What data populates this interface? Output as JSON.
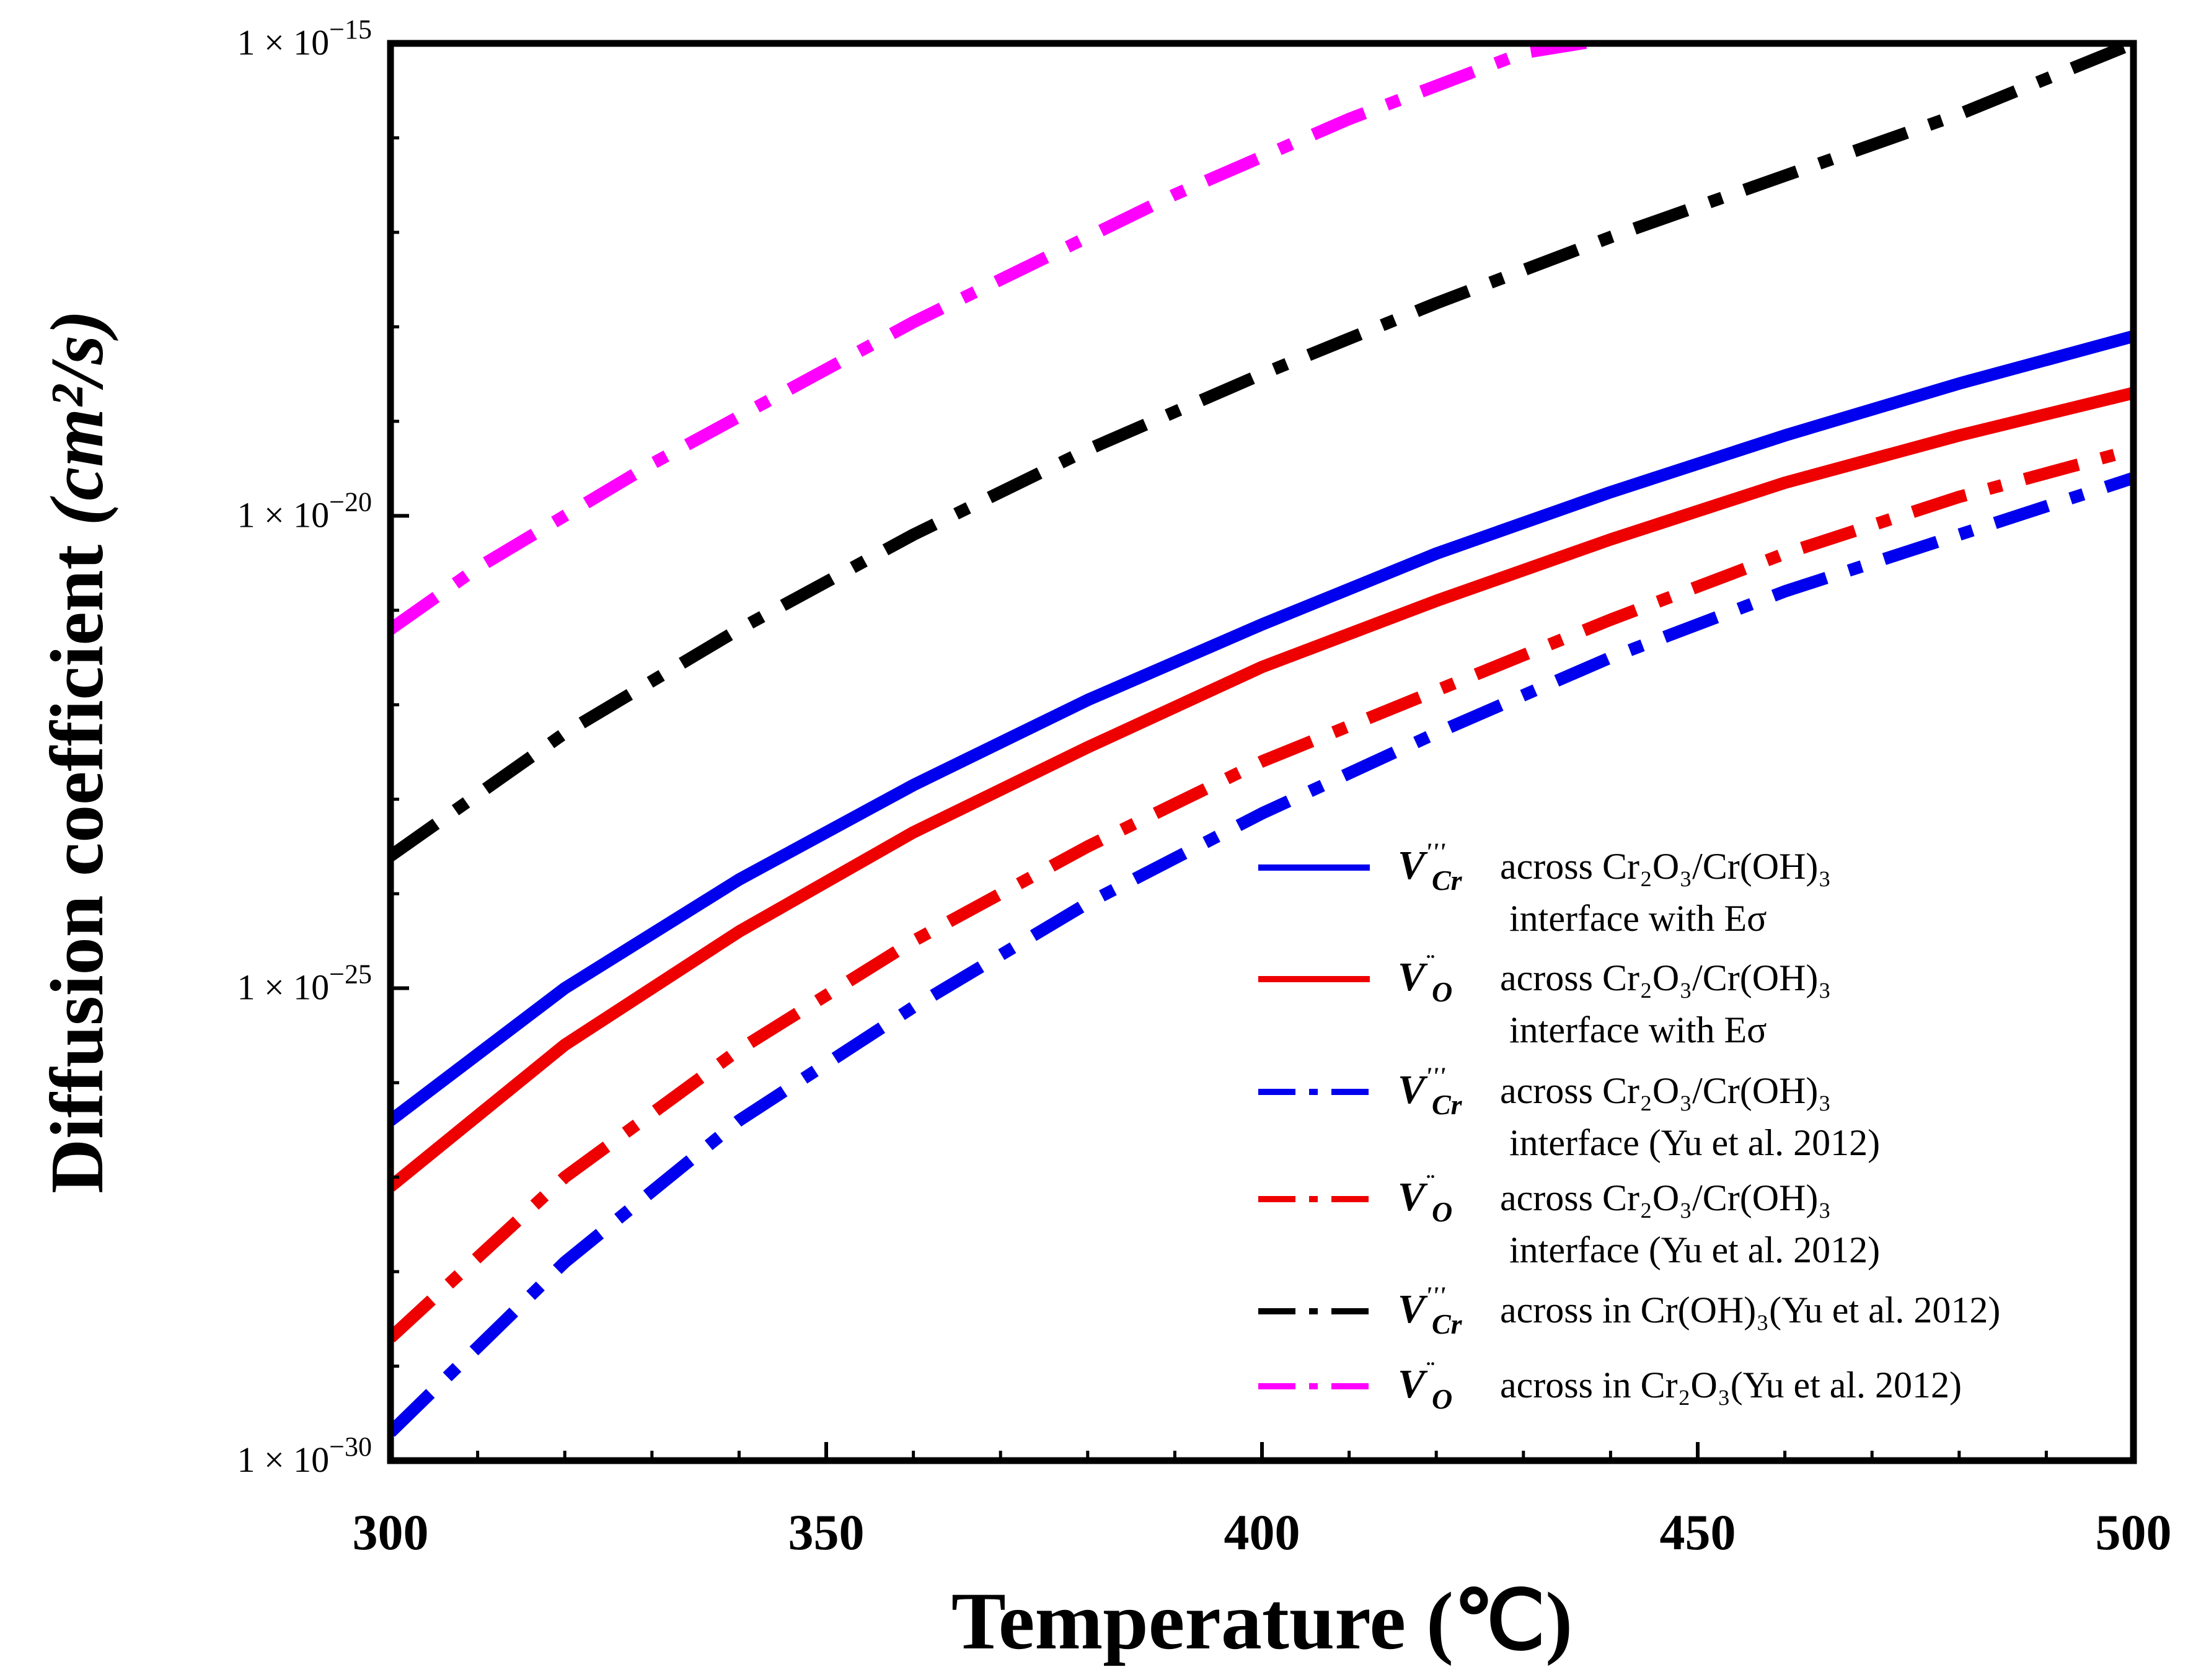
{
  "chart_data": {
    "type": "line",
    "title": "",
    "xlabel": "Temperature (℃)",
    "ylabel_main": "Diffusion coefficient ",
    "ylabel_unit": "(cm²/s)",
    "xlim": [
      300,
      500
    ],
    "ylim_log10": [
      -30,
      -15
    ],
    "x_ticks": [
      300,
      350,
      400,
      450,
      500
    ],
    "x_tick_labels": [
      "300",
      "350",
      "400",
      "450",
      "500"
    ],
    "y_ticks_log10": [
      -30,
      -25,
      -20,
      -15
    ],
    "y_tick_labels": [
      {
        "base": "1 × 10",
        "exp": "−30"
      },
      {
        "base": "1 × 10",
        "exp": "−25"
      },
      {
        "base": "1 × 10",
        "exp": "−20"
      },
      {
        "base": "1 × 10",
        "exp": "−15"
      }
    ],
    "grid": false,
    "legend_position": "bottom-right",
    "series": [
      {
        "name": "V'''Cr across Cr2O3/Cr(OH)3 interface with Eσ",
        "color": "#0000ee",
        "style": "solid",
        "x": [
          300,
          320,
          340,
          360,
          380,
          400,
          420,
          440,
          460,
          480,
          500
        ],
        "y_log10": [
          -26.4,
          -25.0,
          -23.85,
          -22.85,
          -21.95,
          -21.15,
          -20.4,
          -19.75,
          -19.15,
          -18.6,
          -18.1
        ]
      },
      {
        "name": "V¨O across Cr2O3/Cr(OH)3 interface with Eσ",
        "color": "#ee0000",
        "style": "solid",
        "x": [
          300,
          320,
          340,
          360,
          380,
          400,
          420,
          440,
          460,
          480,
          500
        ],
        "y_log10": [
          -27.1,
          -25.6,
          -24.4,
          -23.35,
          -22.45,
          -21.6,
          -20.9,
          -20.25,
          -19.65,
          -19.15,
          -18.7
        ]
      },
      {
        "name": "V'''Cr across Cr2O3/Cr(OH)3 interface (Yuetal.2012)",
        "color": "#0000ee",
        "style": "dashdot",
        "x": [
          300,
          320,
          340,
          360,
          380,
          400,
          420,
          440,
          460,
          480,
          500
        ],
        "y_log10": [
          -29.7,
          -27.9,
          -26.4,
          -25.2,
          -24.1,
          -23.15,
          -22.3,
          -21.5,
          -20.8,
          -20.2,
          -19.6
        ]
      },
      {
        "name": "V¨O across Cr2O3/Cr(OH)3 interface (Yuetal.2012)",
        "color": "#ee0000",
        "style": "dashdot",
        "x": [
          300,
          320,
          340,
          360,
          380,
          400,
          420,
          440,
          460,
          480,
          500
        ],
        "y_log10": [
          -28.7,
          -27.0,
          -25.65,
          -24.5,
          -23.5,
          -22.6,
          -21.85,
          -21.1,
          -20.4,
          -19.8,
          -19.3
        ]
      },
      {
        "name": "V'''Cr across in Cr(OH)3(Yuetal.2012)",
        "color": "#000000",
        "style": "dashdot",
        "x": [
          300,
          320,
          340,
          360,
          380,
          400,
          420,
          440,
          460,
          480,
          500
        ],
        "y_log10": [
          -23.6,
          -22.3,
          -21.2,
          -20.2,
          -19.3,
          -18.5,
          -17.75,
          -17.05,
          -16.4,
          -15.75,
          -15.0
        ]
      },
      {
        "name": "V¨O across in Cr2O3(Yuetal.2012)",
        "color": "#ff00ff",
        "style": "dashdot",
        "x": [
          300,
          310,
          320,
          330,
          340,
          350,
          360,
          370,
          380,
          390,
          400,
          410,
          420,
          430,
          440
        ],
        "y_log10": [
          -21.2,
          -20.55,
          -20.0,
          -19.45,
          -18.95,
          -18.45,
          -17.95,
          -17.5,
          -17.05,
          -16.6,
          -16.2,
          -15.8,
          -15.45,
          -15.1,
          -14.95
        ]
      }
    ],
    "legend": [
      {
        "sym": "V",
        "sup": "'''",
        "sub": "Cr",
        "lines": [
          "across Cr₂O₃/Cr(OH)₃",
          "interface with Eσ"
        ]
      },
      {
        "sym": "V",
        "sup": "¨",
        "sub": "O",
        "lines": [
          "across Cr₂O₃/Cr(OH)₃",
          "interface with Eσ"
        ]
      },
      {
        "sym": "V",
        "sup": "'''",
        "sub": "Cr",
        "lines": [
          "across Cr₂O₃/Cr(OH)₃",
          "interface (Yu et al. 2012)"
        ]
      },
      {
        "sym": "V",
        "sup": "¨",
        "sub": "O",
        "lines": [
          "across Cr₂O₃/Cr(OH)₃",
          "interface (Yu et al. 2012)"
        ]
      },
      {
        "sym": "V",
        "sup": "'''",
        "sub": "Cr",
        "lines": [
          "across in Cr(OH)₃(Yu et al. 2012)"
        ]
      },
      {
        "sym": "V",
        "sup": "¨",
        "sub": "O",
        "lines": [
          "across in Cr₂O₃(Yu et al. 2012)"
        ]
      }
    ]
  }
}
